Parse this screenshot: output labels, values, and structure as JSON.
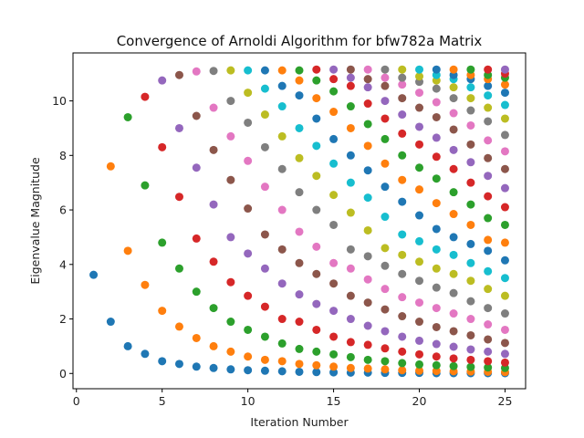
{
  "chart_data": {
    "type": "scatter",
    "title": "Convergence of Arnoldi Algorithm for bfw782a Matrix",
    "xlabel": "Iteration Number",
    "ylabel": "Eigenvalue Magnitude",
    "xlim": [
      -0.2,
      26.2
    ],
    "ylim": [
      -0.56,
      11.76
    ],
    "x_ticks": [
      0,
      5,
      10,
      15,
      20,
      25
    ],
    "y_ticks": [
      0,
      2,
      4,
      6,
      8,
      10
    ],
    "grid": false,
    "legend": "none",
    "colors": [
      "#1f77b4",
      "#ff7f0e",
      "#2ca02c",
      "#d62728",
      "#9467bd",
      "#8c564b",
      "#e377c2",
      "#7f7f7f",
      "#bcbd22",
      "#17becf"
    ],
    "series": [
      {
        "x": 1,
        "values": [
          3.62
        ]
      },
      {
        "x": 2,
        "values": [
          1.9,
          7.6
        ]
      },
      {
        "x": 3,
        "values": [
          1.0,
          4.5,
          9.4
        ]
      },
      {
        "x": 4,
        "values": [
          0.72,
          3.25,
          6.9,
          10.15
        ]
      },
      {
        "x": 5,
        "values": [
          0.45,
          2.3,
          4.8,
          8.3,
          10.75
        ]
      },
      {
        "x": 6,
        "values": [
          0.35,
          1.72,
          3.85,
          6.48,
          9.0,
          10.95
        ]
      },
      {
        "x": 7,
        "values": [
          0.25,
          1.3,
          3.0,
          4.95,
          7.55,
          9.45,
          11.08
        ]
      },
      {
        "x": 8,
        "values": [
          0.2,
          1.0,
          2.4,
          4.1,
          6.2,
          8.2,
          9.75,
          11.1
        ]
      },
      {
        "x": 9,
        "values": [
          0.15,
          0.8,
          1.9,
          3.35,
          5.0,
          7.1,
          8.7,
          10.0,
          11.12
        ]
      },
      {
        "x": 10,
        "values": [
          0.12,
          0.62,
          1.6,
          2.85,
          4.4,
          6.05,
          7.8,
          9.2,
          10.3,
          11.12
        ]
      },
      {
        "x": 11,
        "values": [
          0.1,
          0.5,
          1.35,
          2.45,
          3.85,
          5.1,
          6.85,
          8.3,
          9.5,
          10.45,
          11.12
        ]
      },
      {
        "x": 12,
        "values": [
          0.08,
          0.45,
          1.1,
          2.0,
          3.3,
          4.55,
          6.0,
          7.5,
          8.7,
          9.8,
          10.55,
          11.12
        ]
      },
      {
        "x": 13,
        "values": [
          0.06,
          0.35,
          0.9,
          1.9,
          2.9,
          4.05,
          5.2,
          6.65,
          7.9,
          9.0,
          10.2,
          10.75,
          11.12
        ]
      },
      {
        "x": 14,
        "values": [
          0.05,
          0.3,
          0.8,
          1.6,
          2.55,
          3.65,
          4.65,
          6.0,
          7.25,
          8.35,
          9.35,
          10.1,
          10.75,
          11.15
        ]
      },
      {
        "x": 15,
        "values": [
          0.04,
          0.25,
          0.7,
          1.35,
          2.3,
          3.3,
          4.05,
          5.45,
          6.55,
          7.7,
          8.6,
          9.6,
          10.35,
          10.8,
          11.15
        ]
      },
      {
        "x": 16,
        "values": [
          0.03,
          0.2,
          0.6,
          1.15,
          2.0,
          2.85,
          3.85,
          4.55,
          5.9,
          7.0,
          8.0,
          9.0,
          9.8,
          10.55,
          10.85,
          11.15
        ]
      },
      {
        "x": 17,
        "values": [
          0.03,
          0.18,
          0.5,
          1.05,
          1.75,
          2.6,
          3.45,
          4.3,
          5.25,
          6.45,
          7.45,
          8.35,
          9.15,
          9.9,
          10.5,
          10.8,
          11.15
        ]
      },
      {
        "x": 18,
        "values": [
          0.02,
          0.15,
          0.45,
          0.92,
          1.55,
          2.35,
          3.1,
          3.95,
          4.6,
          5.75,
          6.85,
          7.7,
          8.6,
          9.35,
          10.0,
          10.55,
          10.85,
          11.15
        ]
      },
      {
        "x": 19,
        "values": [
          0.02,
          0.12,
          0.38,
          0.8,
          1.35,
          2.1,
          2.8,
          3.65,
          4.35,
          5.1,
          6.3,
          7.1,
          8.0,
          8.8,
          9.5,
          10.1,
          10.6,
          10.85,
          11.15
        ]
      },
      {
        "x": 20,
        "values": [
          0.02,
          0.1,
          0.33,
          0.7,
          1.2,
          1.9,
          2.6,
          3.4,
          4.1,
          4.85,
          5.8,
          6.75,
          7.55,
          8.4,
          9.05,
          9.75,
          10.3,
          10.7,
          10.9,
          11.15
        ]
      },
      {
        "x": 21,
        "values": [
          0.01,
          0.09,
          0.3,
          0.62,
          1.08,
          1.7,
          2.4,
          3.15,
          3.85,
          4.55,
          5.3,
          6.25,
          7.15,
          7.95,
          8.65,
          9.4,
          9.95,
          10.45,
          10.75,
          10.95,
          11.15
        ]
      },
      {
        "x": 22,
        "values": [
          0.01,
          0.08,
          0.27,
          0.55,
          0.98,
          1.55,
          2.2,
          2.95,
          3.65,
          4.35,
          5.0,
          5.85,
          6.65,
          7.5,
          8.2,
          8.95,
          9.55,
          10.1,
          10.5,
          10.8,
          10.95,
          11.15
        ]
      },
      {
        "x": 23,
        "values": [
          0.01,
          0.07,
          0.24,
          0.5,
          0.88,
          1.4,
          2.0,
          2.65,
          3.4,
          4.05,
          4.75,
          5.45,
          6.2,
          7.0,
          7.75,
          8.4,
          9.1,
          9.65,
          10.1,
          10.5,
          10.8,
          10.95,
          11.15
        ]
      },
      {
        "x": 24,
        "values": [
          0.01,
          0.06,
          0.22,
          0.45,
          0.8,
          1.25,
          1.8,
          2.4,
          3.1,
          3.75,
          4.5,
          4.9,
          5.7,
          6.5,
          7.25,
          7.9,
          8.55,
          9.25,
          9.75,
          10.2,
          10.55,
          10.8,
          10.95,
          11.15
        ]
      },
      {
        "x": 25,
        "values": [
          0.01,
          0.05,
          0.2,
          0.4,
          0.72,
          1.12,
          1.6,
          2.2,
          2.85,
          3.5,
          4.15,
          4.8,
          5.45,
          6.1,
          6.8,
          7.5,
          8.15,
          8.75,
          9.35,
          9.85,
          10.3,
          10.6,
          10.85,
          11.0,
          11.15
        ]
      }
    ]
  }
}
